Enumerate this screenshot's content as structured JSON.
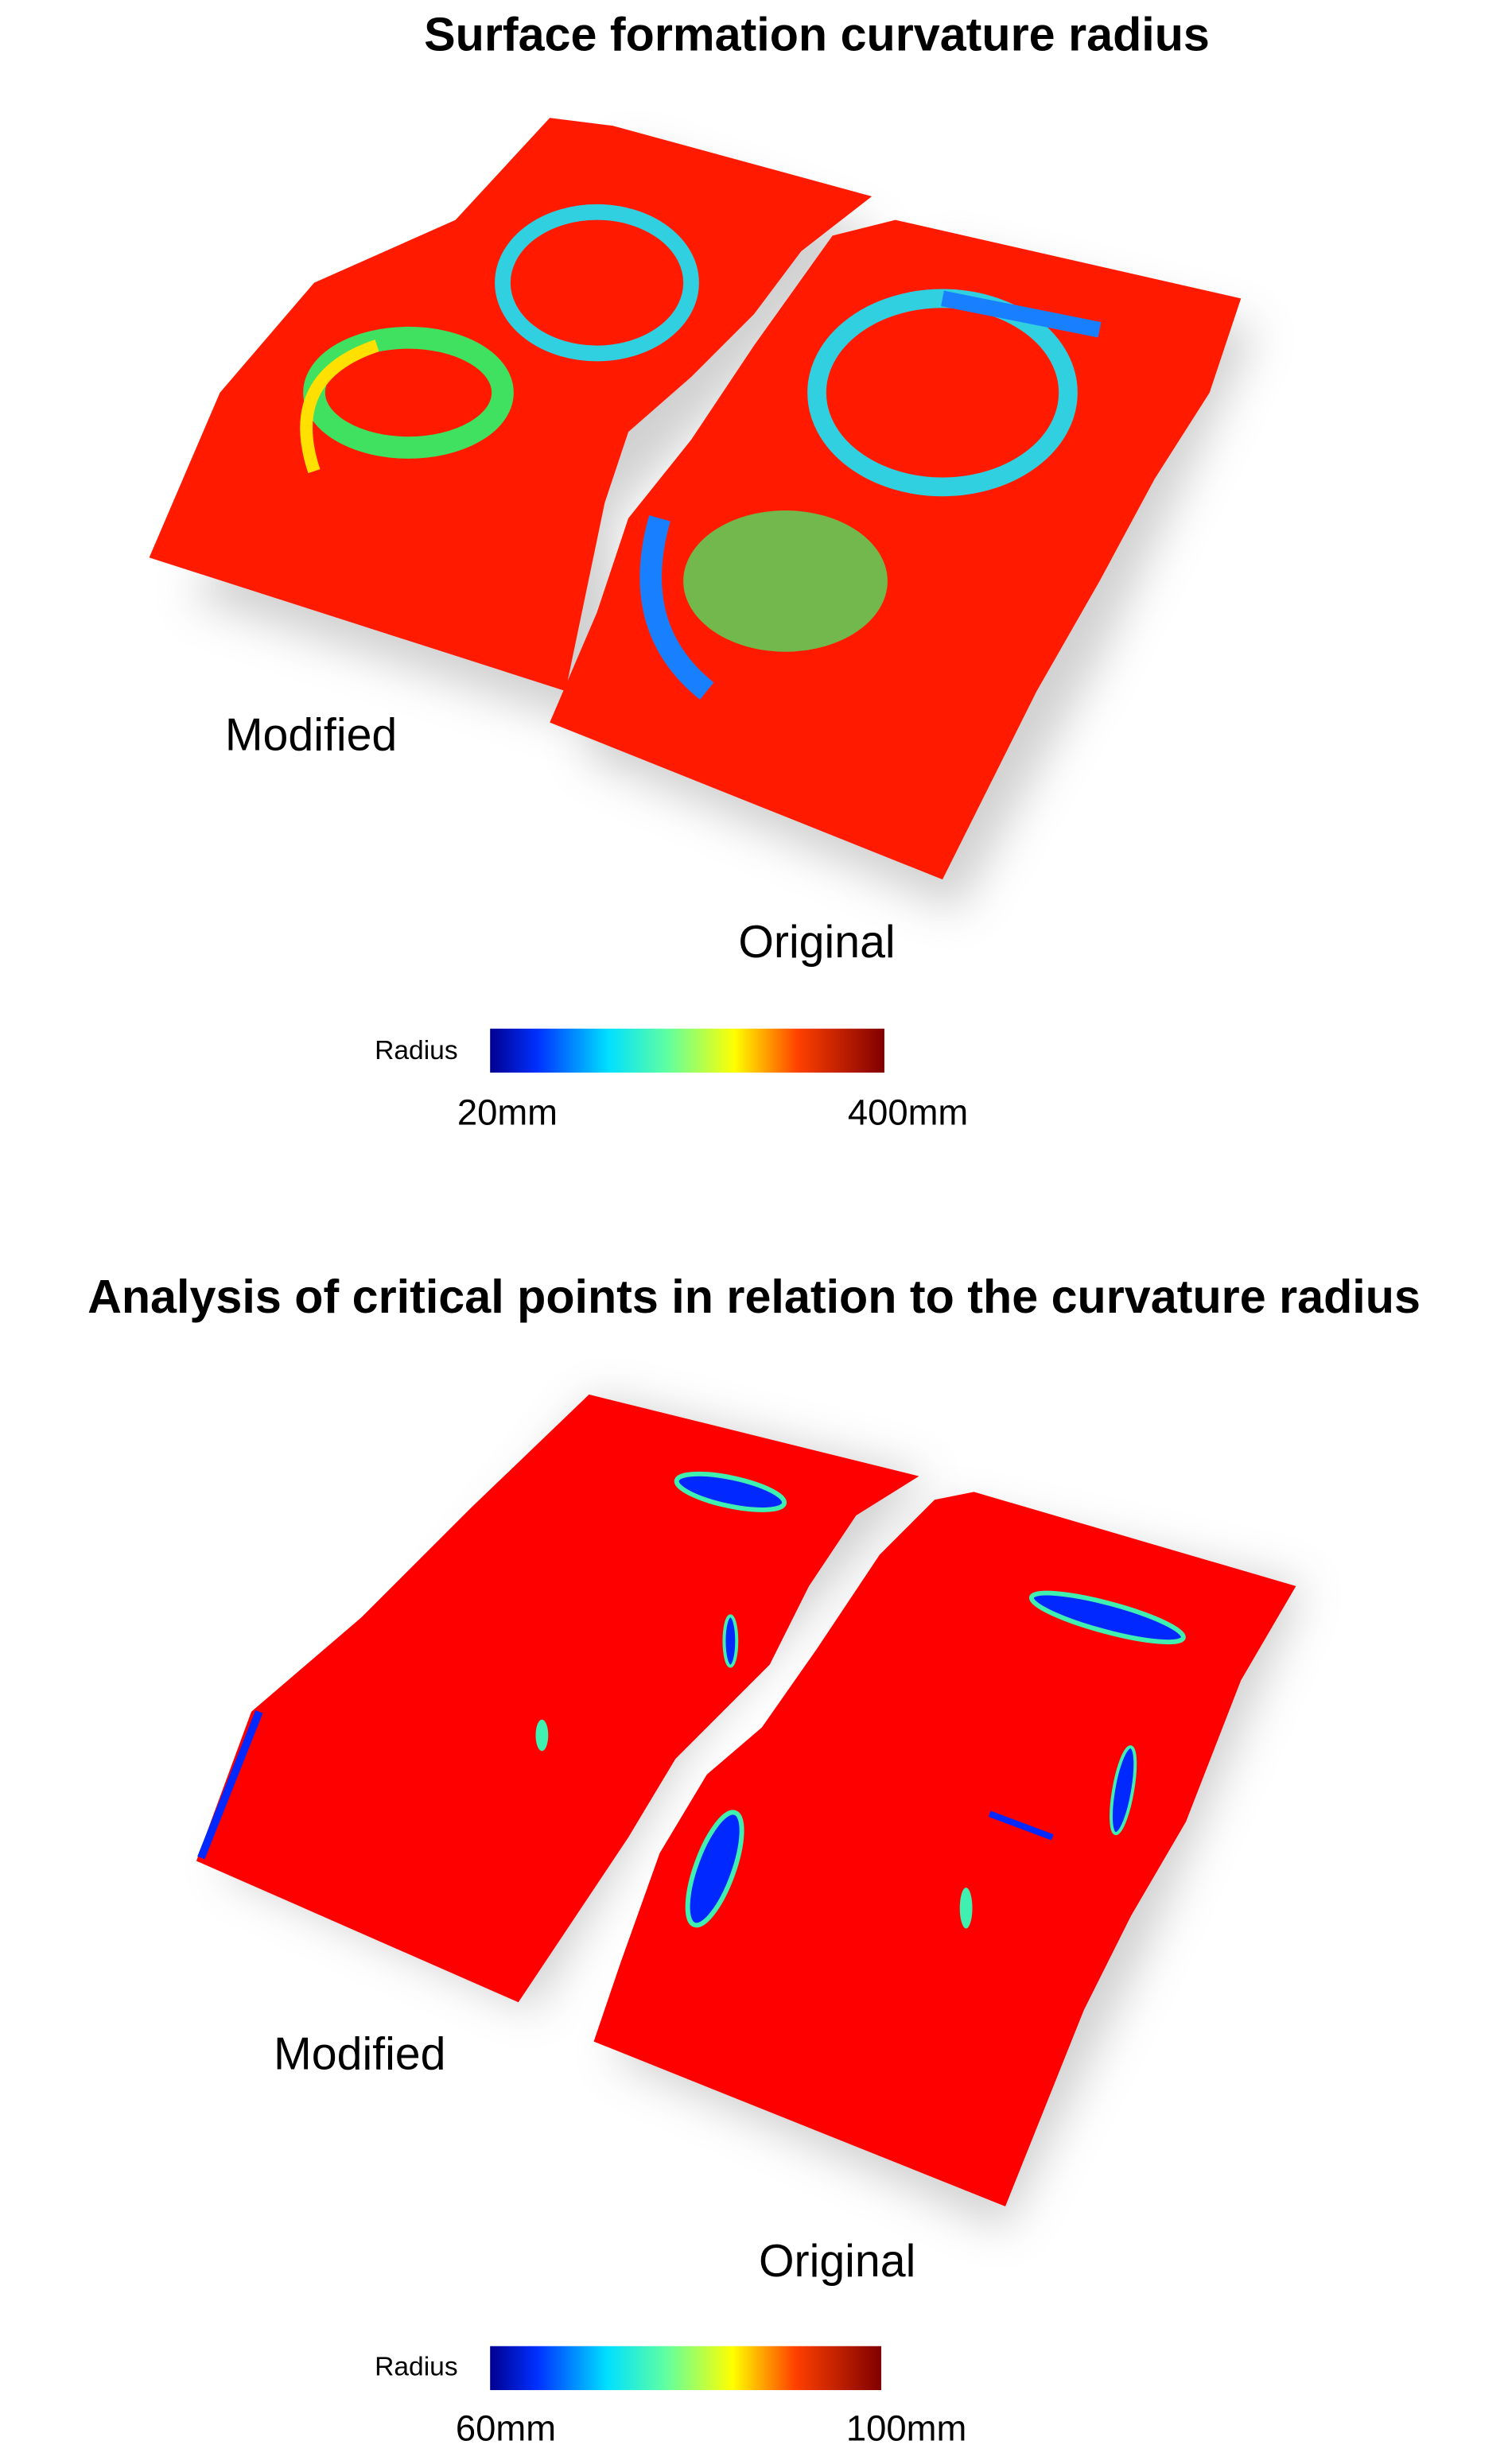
{
  "panels": [
    {
      "title": "Surface formation curvature radius",
      "labels": [
        "Modified",
        "Original"
      ],
      "legend": {
        "label": "Radius",
        "min": "20mm",
        "max": "400mm"
      }
    },
    {
      "title": "Analysis of critical points in relation to the curvature radius",
      "labels": [
        "Modified",
        "Original"
      ],
      "legend": {
        "label": "Radius",
        "min": "60mm",
        "max": "100mm"
      }
    }
  ]
}
